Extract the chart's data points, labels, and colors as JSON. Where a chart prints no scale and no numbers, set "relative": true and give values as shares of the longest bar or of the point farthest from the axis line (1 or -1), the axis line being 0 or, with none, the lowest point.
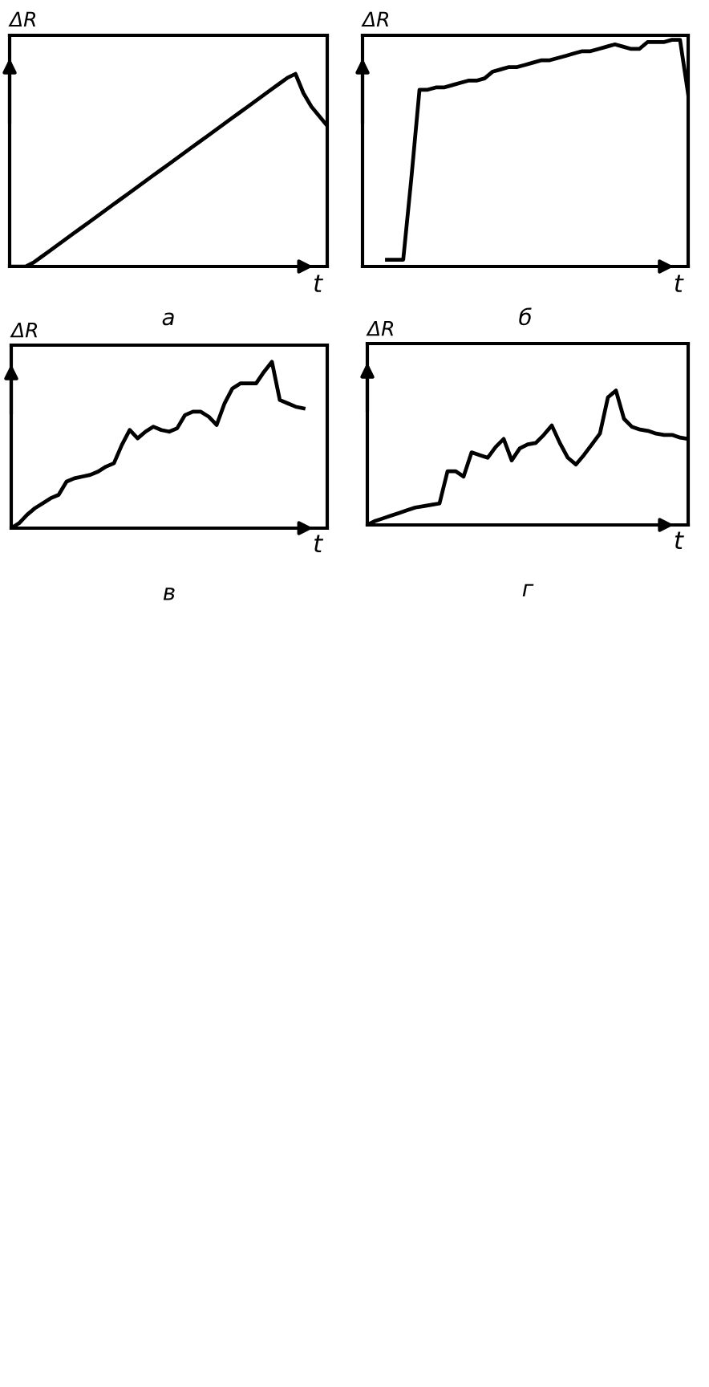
{
  "chart_data": [
    {
      "type": "line",
      "relative": true,
      "title": "а",
      "xlabel": "t",
      "ylabel": "ΔR",
      "categories": [
        null,
        null,
        null,
        null,
        null,
        null,
        null,
        null,
        null,
        null,
        null,
        null,
        null,
        null,
        null,
        null,
        null,
        null,
        null,
        null,
        null,
        null,
        null,
        null,
        null,
        null,
        null,
        null,
        null,
        null,
        null,
        null,
        null,
        null,
        null,
        null,
        null,
        null,
        null,
        null,
        null
      ],
      "series": [
        {
          "color": "#000000",
          "values": [
            0,
            0,
            0,
            0.02,
            0.05,
            0.08,
            0.11,
            0.14,
            0.17,
            0.2,
            0.23,
            0.26,
            0.29,
            0.32,
            0.35,
            0.38,
            0.41,
            0.44,
            0.47,
            0.5,
            0.53,
            0.56,
            0.59,
            0.62,
            0.65,
            0.68,
            0.71,
            0.74,
            0.77,
            0.8,
            0.83,
            0.86,
            0.89,
            0.92,
            0.95,
            0.98,
            1.0,
            0.9,
            0.83,
            0.78,
            0.73
          ]
        }
      ]
    },
    {
      "type": "line",
      "relative": true,
      "title": "б",
      "xlabel": "t",
      "ylabel": "ΔR",
      "categories": [
        null,
        null,
        null,
        null,
        null,
        null,
        null,
        null,
        null,
        null,
        null,
        null,
        null,
        null,
        null,
        null,
        null,
        null,
        null,
        null,
        null,
        null,
        null,
        null,
        null,
        null,
        null,
        null,
        null,
        null,
        null,
        null,
        null,
        null,
        null,
        null,
        null,
        null,
        null,
        null,
        null
      ],
      "series": [
        {
          "color": "#000000",
          "values": [
            null,
            null,
            null,
            0.03,
            0.03,
            0.03,
            0.39,
            0.78,
            0.78,
            0.79,
            0.79,
            0.8,
            0.81,
            0.82,
            0.82,
            0.83,
            0.86,
            0.87,
            0.88,
            0.88,
            0.89,
            0.9,
            0.91,
            0.91,
            0.92,
            0.93,
            0.94,
            0.95,
            0.95,
            0.96,
            0.97,
            0.98,
            0.97,
            0.96,
            0.96,
            0.99,
            0.99,
            0.99,
            1.0,
            1.0,
            0.76
          ]
        }
      ]
    },
    {
      "type": "line",
      "relative": true,
      "title": "в",
      "xlabel": "t",
      "ylabel": "ΔR",
      "categories": [
        null,
        null,
        null,
        null,
        null,
        null,
        null,
        null,
        null,
        null,
        null,
        null,
        null,
        null,
        null,
        null,
        null,
        null,
        null,
        null,
        null,
        null,
        null,
        null,
        null,
        null,
        null,
        null,
        null,
        null,
        null,
        null,
        null,
        null,
        null,
        null,
        null,
        null,
        null,
        null,
        null
      ],
      "series": [
        {
          "color": "#000000",
          "values": [
            0,
            0.03,
            0.08,
            0.12,
            0.15,
            0.18,
            0.2,
            0.28,
            0.3,
            0.31,
            0.32,
            0.34,
            0.37,
            0.39,
            0.5,
            0.59,
            0.54,
            0.58,
            0.61,
            0.59,
            0.58,
            0.6,
            0.68,
            0.7,
            0.7,
            0.67,
            0.62,
            0.75,
            0.84,
            0.87,
            0.87,
            0.87,
            0.94,
            1.0,
            0.77,
            0.75,
            0.73,
            0.72,
            null,
            null,
            null
          ]
        }
      ]
    },
    {
      "type": "line",
      "relative": true,
      "title": "г",
      "xlabel": "t",
      "ylabel": "ΔR",
      "categories": [
        null,
        null,
        null,
        null,
        null,
        null,
        null,
        null,
        null,
        null,
        null,
        null,
        null,
        null,
        null,
        null,
        null,
        null,
        null,
        null,
        null,
        null,
        null,
        null,
        null,
        null,
        null,
        null,
        null,
        null,
        null,
        null,
        null,
        null,
        null,
        null,
        null,
        null,
        null,
        null,
        null
      ],
      "series": [
        {
          "color": "#000000",
          "values": [
            0,
            0.03,
            0.05,
            0.07,
            0.09,
            0.11,
            0.13,
            0.14,
            0.15,
            0.16,
            0.4,
            0.4,
            0.36,
            0.54,
            0.52,
            0.5,
            0.58,
            0.64,
            0.48,
            0.57,
            0.6,
            0.61,
            0.67,
            0.74,
            0.61,
            0.5,
            0.45,
            0.52,
            0.6,
            0.68,
            0.95,
            1.0,
            0.79,
            0.73,
            0.71,
            0.7,
            0.68,
            0.67,
            0.67,
            0.65,
            0.64
          ]
        }
      ]
    }
  ]
}
